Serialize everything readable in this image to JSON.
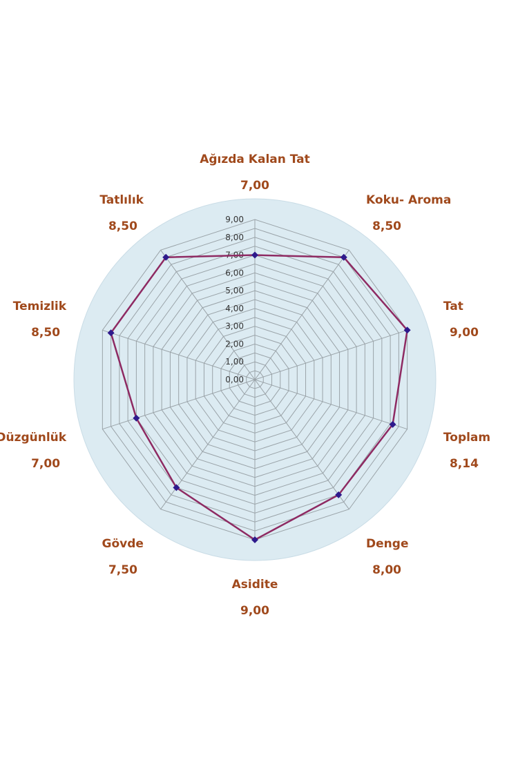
{
  "colors": {
    "label": "#a0491c",
    "series_line": "#8e2a62",
    "marker": "#2e1a8c",
    "plot_bg": "#dcebf2",
    "grid": "#9aa3a8",
    "tick_text": "#333333"
  },
  "chart_data": {
    "type": "radar",
    "title": "",
    "grid": true,
    "rmin": 0,
    "rmax": 9,
    "ticks": [
      "0,00",
      "1,00",
      "2,00",
      "3,00",
      "4,00",
      "5,00",
      "6,00",
      "7,00",
      "8,00",
      "9,00"
    ],
    "axes": [
      {
        "label": "Ağızda Kalan Tat",
        "value_text": "7,00",
        "value": 7.0
      },
      {
        "label": "Koku- Aroma",
        "value_text": "8,50",
        "value": 8.5
      },
      {
        "label": "Tat",
        "value_text": "9,00",
        "value": 9.0
      },
      {
        "label": "Toplam",
        "value_text": "8,14",
        "value": 8.14
      },
      {
        "label": "Denge",
        "value_text": "8,00",
        "value": 8.0
      },
      {
        "label": "Asidite",
        "value_text": "9,00",
        "value": 9.0
      },
      {
        "label": "Gövde",
        "value_text": "7,50",
        "value": 7.5
      },
      {
        "label": "Düzgünlük",
        "value_text": "7,00",
        "value": 7.0
      },
      {
        "label": "Temizlik",
        "value_text": "8,50",
        "value": 8.5
      },
      {
        "label": "Tatlılık",
        "value_text": "8,50",
        "value": 8.5
      }
    ]
  }
}
